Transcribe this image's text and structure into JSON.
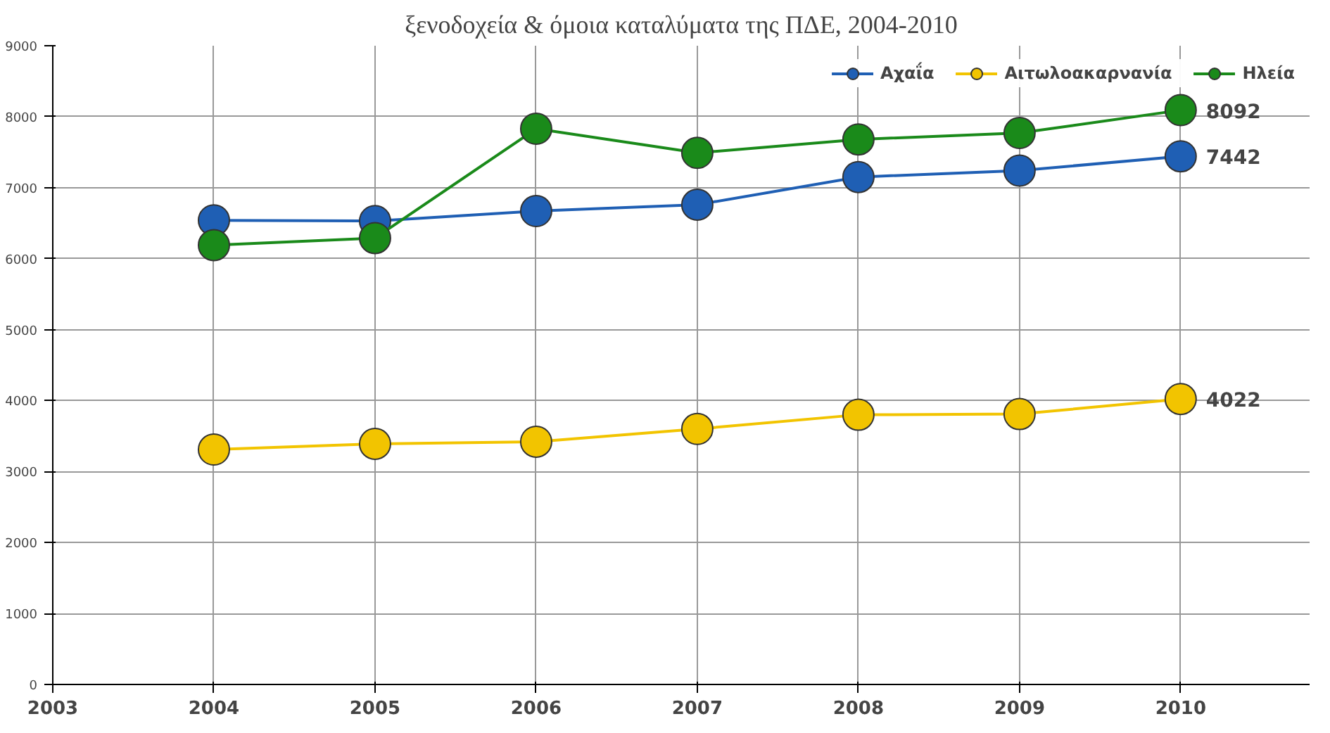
{
  "chart_data": {
    "type": "line",
    "title": "ξενοδοχεία & όμοια καταλύματα της ΠΔΕ, 2004-2010",
    "x": [
      2004,
      2005,
      2006,
      2007,
      2008,
      2009,
      2010
    ],
    "series": [
      {
        "name": "Αχαΐα",
        "color": "#1f5fb4",
        "values": [
          6540,
          6530,
          6670,
          6760,
          7150,
          7240,
          7442
        ],
        "value_labels": [
          null,
          null,
          null,
          null,
          null,
          null,
          "7442"
        ]
      },
      {
        "name": "Αιτωλοακαρνανία",
        "color": "#f2c400",
        "values": [
          3310,
          3390,
          3420,
          3600,
          3800,
          3810,
          4022
        ],
        "value_labels": [
          null,
          null,
          null,
          null,
          null,
          null,
          "4022"
        ]
      },
      {
        "name": "Ηλεία",
        "color": "#1a8a1a",
        "values": [
          6190,
          6290,
          7830,
          7490,
          7680,
          7770,
          8092
        ],
        "value_labels": [
          null,
          null,
          null,
          null,
          null,
          null,
          "8092"
        ]
      }
    ],
    "xlim": [
      2003,
      2010.8
    ],
    "ylim": [
      0,
      9000
    ],
    "xticks": [
      2003,
      2004,
      2005,
      2006,
      2007,
      2008,
      2009,
      2010
    ],
    "yticks": [
      0,
      1000,
      2000,
      3000,
      4000,
      5000,
      6000,
      7000,
      8000,
      9000
    ],
    "grid": true,
    "legend": "top right",
    "marker": "circle",
    "line_style": "solid"
  }
}
